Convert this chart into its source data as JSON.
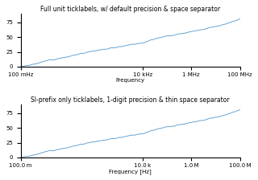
{
  "title1": "Full unit ticklabels, w/ default precision & space separator",
  "title2": "SI-prefix only ticklabels, 1-digit precision & thin space separator",
  "xlabel1": "Frequency",
  "xlabel2": "Frequency [Hz]",
  "freq_start": 0.1,
  "freq_stop": 100000000.0,
  "num_points": 1000,
  "line_color": "#5599cc",
  "background_color": "#ffffff",
  "fig_color": "#ffffff",
  "ylim": [
    0,
    90
  ],
  "xticks": [
    0.1,
    10000.0,
    1000000.0,
    100000000.0
  ],
  "xtick_labels_top": [
    "100 mHz",
    "10 kHz",
    "1 MHz",
    "100 MHz"
  ],
  "xtick_labels_bottom": [
    "100.0 m",
    "10.0 k",
    "1.0 M",
    "100.0 M"
  ]
}
